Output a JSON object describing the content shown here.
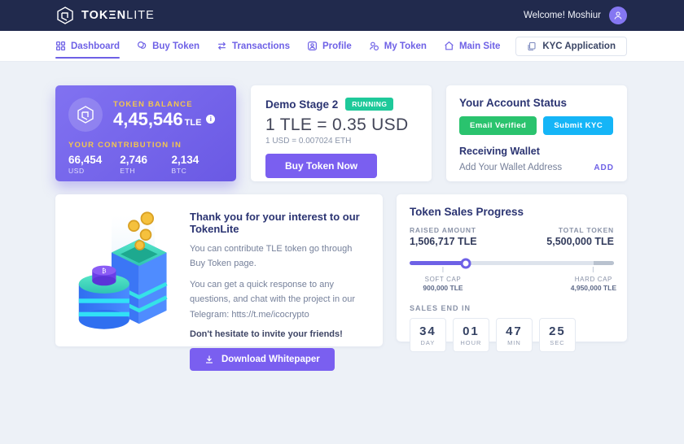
{
  "brand": {
    "name_bold": "TOKΞN",
    "name_light": "LITE"
  },
  "topbar": {
    "welcome": "Welcome! Moshiur"
  },
  "nav": {
    "items": [
      {
        "label": "Dashboard",
        "icon": "dashboard-grid-icon",
        "active": true
      },
      {
        "label": "Buy Token",
        "icon": "coins-icon",
        "active": false
      },
      {
        "label": "Transactions",
        "icon": "swap-arrows-icon",
        "active": false
      },
      {
        "label": "Profile",
        "icon": "user-card-icon",
        "active": false
      },
      {
        "label": "My Token",
        "icon": "user-coin-icon",
        "active": false
      },
      {
        "label": "Main Site",
        "icon": "home-icon",
        "active": false
      }
    ],
    "kyc_button": "KYC Application"
  },
  "balance_card": {
    "label": "TOKEN BALANCE",
    "amount": "4,45,546",
    "suffix": "TLE",
    "info_icon": "i",
    "contribution_label": "YOUR CONTRIBUTION IN",
    "contributions": [
      {
        "value": "66,454",
        "currency": "USD"
      },
      {
        "value": "2,746",
        "currency": "ETH"
      },
      {
        "value": "2,134",
        "currency": "BTC"
      }
    ]
  },
  "stage_card": {
    "title": "Demo Stage 2",
    "status": "RUNNING",
    "rate": "1 TLE = 0.35 USD",
    "sub_rate": "1 USD = 0.007024 ETH",
    "buy_button": "Buy Token Now"
  },
  "account_card": {
    "title": "Your Account Status",
    "badges": [
      {
        "label": "Email Verified",
        "color": "#2ac36e"
      },
      {
        "label": "Submit KYC",
        "color": "#15b5f7"
      }
    ],
    "subtitle": "Receiving Wallet",
    "wallet_hint": "Add Your Wallet Address",
    "add_link": "ADD"
  },
  "thanks_card": {
    "title": "Thank you for your interest to our TokenLite",
    "paragraph1": "You can contribute TLE token go through Buy Token page.",
    "paragraph2": "You can get a quick response to any questions, and chat with the project in our Telegram: htts://t.me/icocrypto",
    "strong_line": "Don't hesitate to invite your friends!",
    "download_button": "Download Whitepaper"
  },
  "progress_card": {
    "title": "Token Sales Progress",
    "raised_label": "RAISED AMOUNT",
    "raised_text": "1,506,717 TLE",
    "raised_value": 1506717,
    "total_label": "TOTAL TOKEN",
    "total_text": "5,500,000 TLE",
    "total_value": 5500000,
    "soft_cap_label": "SOFT CAP",
    "soft_cap_text": "900,000 TLE",
    "soft_cap_value": 900000,
    "hard_cap_label": "HARD CAP",
    "hard_cap_text": "4,950,000 TLE",
    "hard_cap_value": 4950000
  },
  "countdown": {
    "label": "SALES END IN",
    "units": [
      {
        "value": "34",
        "unit": "DAY"
      },
      {
        "value": "01",
        "unit": "HOUR"
      },
      {
        "value": "47",
        "unit": "MIN"
      },
      {
        "value": "25",
        "unit": "SEC"
      }
    ]
  },
  "colors": {
    "navbar": "#212a4d",
    "accent_purple": "#6e61e6",
    "button_purple": "#7a5ff0",
    "balance_gradient": [
      "#8172f1",
      "#6a59e4"
    ],
    "gold_label": "#f3c64f",
    "running_green": "#1ec99a",
    "email_green": "#2ac36e",
    "kyc_blue": "#15b5f7",
    "page_background": "#edf1f7"
  },
  "icons": [
    "cube-logo-icon",
    "user-avatar-icon",
    "dashboard-grid-icon",
    "coins-icon",
    "swap-arrows-icon",
    "user-card-icon",
    "user-coin-icon",
    "home-icon",
    "file-icon",
    "info-icon",
    "download-icon"
  ]
}
